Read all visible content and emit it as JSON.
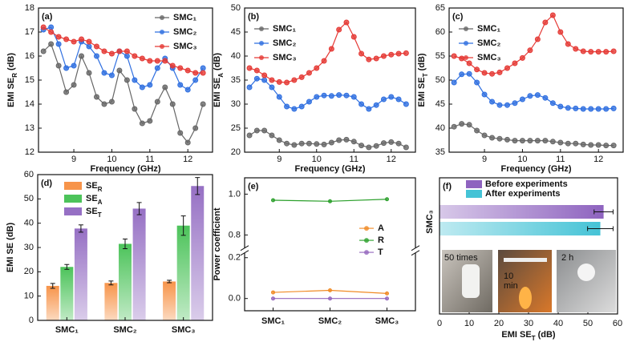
{
  "chart_data": [
    {
      "type": "line",
      "panel_label": "(a)",
      "ylabel": [
        "EMI SE",
        "R",
        " (dB)"
      ],
      "xlabel": "Frequency (GHz)",
      "legend": "upper right",
      "x": [
        8.2,
        8.4,
        8.6,
        8.8,
        9.0,
        9.2,
        9.4,
        9.6,
        9.8,
        10.0,
        10.2,
        10.4,
        10.6,
        10.8,
        11.0,
        11.2,
        11.4,
        11.6,
        11.8,
        12.0,
        12.2,
        12.4
      ],
      "xlim": [
        8.07,
        12.65
      ],
      "xticks": [
        9,
        10,
        11,
        12
      ],
      "ylim": [
        12,
        18
      ],
      "yticks": [
        12,
        13,
        14,
        15,
        16,
        17,
        18
      ],
      "series": [
        {
          "name": "SMC₁",
          "color": "#666666",
          "values": [
            16.2,
            16.5,
            15.6,
            14.5,
            14.8,
            16.0,
            15.3,
            14.3,
            14.0,
            14.1,
            15.4,
            15.0,
            13.8,
            13.2,
            13.3,
            14.1,
            14.7,
            14.0,
            12.8,
            12.4,
            13.0,
            14.0
          ]
        },
        {
          "name": "SMC₂",
          "color": "#2f6fe0",
          "values": [
            17.1,
            17.2,
            16.5,
            15.5,
            15.6,
            16.6,
            16.4,
            16.0,
            15.3,
            15.2,
            16.2,
            16.0,
            15.0,
            14.7,
            14.8,
            15.5,
            15.9,
            15.5,
            14.8,
            14.6,
            15.0,
            15.5
          ]
        },
        {
          "name": "SMC₃",
          "color": "#e53935",
          "values": [
            17.2,
            17.0,
            16.8,
            16.7,
            16.6,
            16.7,
            16.6,
            16.4,
            16.2,
            16.1,
            16.2,
            16.2,
            16.0,
            15.9,
            15.8,
            15.8,
            15.8,
            15.6,
            15.5,
            15.4,
            15.3,
            15.3
          ]
        }
      ]
    },
    {
      "type": "line",
      "panel_label": "(b)",
      "ylabel": [
        "EMI SE",
        "A",
        " (dB)"
      ],
      "xlabel": "Frequency (GHz)",
      "legend": "upper left",
      "x": [
        8.2,
        8.4,
        8.6,
        8.8,
        9.0,
        9.2,
        9.4,
        9.6,
        9.8,
        10.0,
        10.2,
        10.4,
        10.6,
        10.8,
        11.0,
        11.2,
        11.4,
        11.6,
        11.8,
        12.0,
        12.2,
        12.4
      ],
      "xlim": [
        8.07,
        12.65
      ],
      "xticks": [
        9,
        10,
        11,
        12
      ],
      "ylim": [
        20,
        50
      ],
      "yticks": [
        20,
        25,
        30,
        35,
        40,
        45,
        50
      ],
      "series": [
        {
          "name": "SMC₁",
          "color": "#666666",
          "values": [
            23.5,
            24.5,
            24.5,
            23.5,
            22.5,
            21.8,
            21.5,
            21.8,
            21.8,
            21.7,
            21.6,
            22.0,
            22.5,
            22.6,
            22.2,
            21.4,
            21.0,
            21.3,
            21.9,
            22.1,
            21.8,
            21.0
          ]
        },
        {
          "name": "SMC₂",
          "color": "#2f6fe0",
          "values": [
            33.5,
            35.3,
            35.0,
            33.5,
            31.5,
            29.5,
            29.0,
            29.5,
            30.5,
            31.5,
            31.8,
            31.7,
            31.9,
            31.8,
            31.5,
            30.0,
            29.0,
            29.8,
            31.0,
            31.5,
            31.0,
            30.0
          ]
        },
        {
          "name": "SMC₃",
          "color": "#e53935",
          "values": [
            37.5,
            37.0,
            36.0,
            35.0,
            34.6,
            34.5,
            35.0,
            35.6,
            36.5,
            37.5,
            39.0,
            41.5,
            45.5,
            47.0,
            44.0,
            40.5,
            39.3,
            39.5,
            40.0,
            40.3,
            40.5,
            40.6
          ]
        }
      ]
    },
    {
      "type": "line",
      "panel_label": "(c)",
      "ylabel": [
        "EMI SE",
        "T",
        " (dB)"
      ],
      "xlabel": "Frequency (GHz)",
      "legend": "upper left",
      "x": [
        8.2,
        8.4,
        8.6,
        8.8,
        9.0,
        9.2,
        9.4,
        9.6,
        9.8,
        10.0,
        10.2,
        10.4,
        10.6,
        10.8,
        11.0,
        11.2,
        11.4,
        11.6,
        11.8,
        12.0,
        12.2,
        12.4
      ],
      "xlim": [
        8.07,
        12.65
      ],
      "xticks": [
        9,
        10,
        11,
        12
      ],
      "ylim": [
        35,
        65
      ],
      "yticks": [
        35,
        40,
        45,
        50,
        55,
        60,
        65
      ],
      "series": [
        {
          "name": "SMC₁",
          "color": "#666666",
          "values": [
            40.3,
            40.9,
            40.7,
            39.5,
            38.5,
            38.0,
            37.8,
            37.6,
            37.4,
            37.4,
            37.4,
            37.4,
            37.4,
            37.2,
            37.0,
            36.8,
            36.8,
            36.6,
            36.5,
            36.5,
            36.4,
            36.4
          ]
        },
        {
          "name": "SMC₂",
          "color": "#2f6fe0",
          "values": [
            49.5,
            51.2,
            51.3,
            49.5,
            47.0,
            45.5,
            44.8,
            44.8,
            45.2,
            46.0,
            46.7,
            46.9,
            46.3,
            45.2,
            44.5,
            44.2,
            44.1,
            44.0,
            44.0,
            44.0,
            44.0,
            44.1
          ]
        },
        {
          "name": "SMC₃",
          "color": "#e53935",
          "values": [
            55.0,
            54.5,
            53.5,
            52.2,
            51.5,
            51.3,
            51.6,
            52.5,
            53.5,
            54.6,
            56.2,
            58.5,
            62.0,
            63.5,
            60.0,
            57.5,
            56.5,
            56.0,
            55.9,
            55.9,
            55.9,
            56.0
          ]
        }
      ]
    },
    {
      "type": "bar",
      "panel_label": "(d)",
      "ylabel": "EMI SE (dB)",
      "legend": "upper left",
      "categories": [
        "SMC₁",
        "SMC₂",
        "SMC₃"
      ],
      "ylim": [
        0,
        60
      ],
      "yticks": [
        0,
        10,
        20,
        30,
        40,
        50,
        60
      ],
      "series": [
        {
          "name": [
            "SE",
            "R"
          ],
          "color": "#f7944a",
          "values": [
            14.2,
            15.4,
            16.0
          ],
          "errors": [
            1.0,
            0.8,
            0.5
          ]
        },
        {
          "name": [
            "SE",
            "A"
          ],
          "color": "#4cc35a",
          "values": [
            22.0,
            31.5,
            39.0
          ],
          "errors": [
            1.0,
            2.0,
            4.0
          ]
        },
        {
          "name": [
            "SE",
            "T"
          ],
          "color": "#9670c4",
          "values": [
            37.8,
            46.0,
            55.3
          ],
          "errors": [
            1.5,
            2.5,
            3.5
          ]
        }
      ]
    },
    {
      "type": "line",
      "panel_label": "(e)",
      "ylabel": "Power coefficient",
      "legend": "center right",
      "categories": [
        "SMC₁",
        "SMC₂",
        "SMC₃"
      ],
      "ylim": [
        -0.06,
        1.08
      ],
      "ybreak": [
        0.22,
        0.74
      ],
      "yticks": [
        {
          "value": 0,
          "label": "0.0"
        },
        0.2,
        0.8,
        {
          "value": 1,
          "label": "1.0"
        }
      ],
      "series": [
        {
          "name": "A",
          "color": "#f08a24",
          "values": [
            0.03,
            0.04,
            0.025
          ]
        },
        {
          "name": "R",
          "color": "#2ca02c",
          "values": [
            0.97,
            0.965,
            0.975
          ]
        },
        {
          "name": "T",
          "color": "#9467bd",
          "values": [
            0,
            0,
            0
          ]
        }
      ]
    },
    {
      "type": "bar",
      "orientation": "horizontal",
      "panel_label": "(f)",
      "legend": "upper left",
      "categories": [
        "SMC₃"
      ],
      "xlim": [
        0,
        60
      ],
      "xticks": [
        0,
        10,
        20,
        30,
        40,
        50,
        60
      ],
      "xlabel": [
        "EMI SE",
        "T",
        " (dB)"
      ],
      "series": [
        {
          "name": "Before experiments",
          "color": "#8e63bf",
          "values": [
            55.3
          ],
          "errors": [
            3.2
          ]
        },
        {
          "name": "After experiments",
          "color": "#45c3d6",
          "values": [
            54.2
          ],
          "errors": [
            4.3
          ]
        }
      ],
      "annotations": [
        "50 times",
        "10",
        "min",
        "2 h"
      ]
    }
  ]
}
